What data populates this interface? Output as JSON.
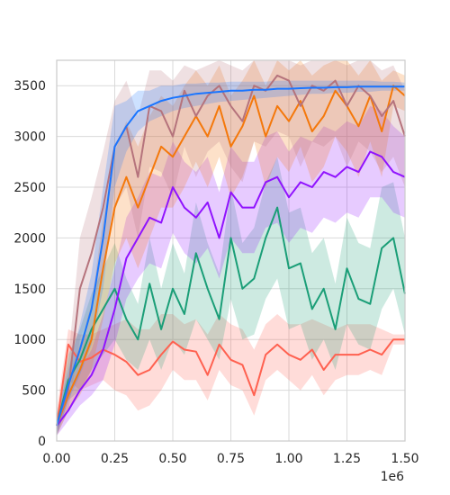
{
  "chart_data": {
    "type": "line",
    "title": "",
    "xlabel": "",
    "ylabel": "",
    "x_offset_label": "1e6",
    "xlim": [
      0,
      1500000
    ],
    "ylim": [
      0,
      3750
    ],
    "x_scale": 1000000,
    "xticks": [
      0,
      250000,
      500000,
      750000,
      1000000,
      1250000,
      1500000
    ],
    "xtick_labels": [
      "0.00",
      "0.25",
      "0.50",
      "0.75",
      "1.00",
      "1.25",
      "1.50"
    ],
    "yticks": [
      0,
      500,
      1000,
      1500,
      2000,
      2500,
      3000,
      3500
    ],
    "ytick_labels": [
      "0",
      "500",
      "1000",
      "1500",
      "2000",
      "2500",
      "3000",
      "3500"
    ],
    "grid": true,
    "legend": "none",
    "band_opacity": 0.22,
    "series": [
      {
        "color": "#ff6150",
        "x": [
          0,
          50000,
          100000,
          150000,
          200000,
          250000,
          300000,
          350000,
          400000,
          450000,
          500000,
          550000,
          600000,
          650000,
          700000,
          750000,
          800000,
          850000,
          900000,
          950000,
          1000000,
          1050000,
          1100000,
          1150000,
          1200000,
          1250000,
          1300000,
          1350000,
          1400000,
          1450000,
          1500000
        ],
        "y": [
          150,
          950,
          780,
          820,
          900,
          850,
          780,
          650,
          700,
          850,
          980,
          900,
          880,
          650,
          950,
          800,
          750,
          450,
          850,
          950,
          850,
          800,
          900,
          700,
          850,
          850,
          850,
          900,
          850,
          1000,
          1000
        ],
        "lower": [
          50,
          600,
          500,
          550,
          600,
          500,
          450,
          300,
          350,
          500,
          700,
          600,
          600,
          400,
          700,
          550,
          500,
          250,
          600,
          700,
          600,
          500,
          650,
          450,
          600,
          650,
          650,
          700,
          650,
          950,
          950
        ],
        "upper": [
          300,
          1100,
          1050,
          1050,
          1100,
          1150,
          1200,
          1100,
          1100,
          1250,
          1250,
          1150,
          1200,
          1050,
          1250,
          1150,
          1100,
          900,
          1150,
          1250,
          1150,
          1150,
          1200,
          1150,
          1100,
          1150,
          1150,
          1150,
          1100,
          1050,
          1050
        ]
      },
      {
        "color": "#1a9e77",
        "x": [
          0,
          50000,
          100000,
          150000,
          200000,
          250000,
          300000,
          350000,
          400000,
          450000,
          500000,
          550000,
          600000,
          650000,
          700000,
          750000,
          800000,
          850000,
          900000,
          950000,
          1000000,
          1050000,
          1100000,
          1150000,
          1200000,
          1250000,
          1300000,
          1350000,
          1400000,
          1450000,
          1500000
        ],
        "y": [
          150,
          600,
          800,
          1100,
          1300,
          1500,
          1200,
          1000,
          1550,
          1100,
          1500,
          1250,
          1850,
          1500,
          1200,
          2000,
          1500,
          1600,
          2000,
          2300,
          1700,
          1750,
          1300,
          1500,
          1100,
          1700,
          1400,
          1350,
          1900,
          2000,
          1450
        ],
        "lower": [
          50,
          400,
          500,
          700,
          850,
          1000,
          800,
          700,
          1000,
          700,
          1000,
          850,
          1200,
          1000,
          800,
          1400,
          1000,
          1050,
          1400,
          1600,
          1100,
          1150,
          800,
          1000,
          700,
          1150,
          950,
          900,
          1300,
          1500,
          1050
        ],
        "upper": [
          250,
          850,
          1100,
          1450,
          1700,
          1950,
          1600,
          1350,
          2000,
          1500,
          1950,
          1650,
          2350,
          1950,
          1650,
          2500,
          1950,
          2100,
          2550,
          2800,
          2250,
          2300,
          1850,
          2000,
          1550,
          2200,
          1950,
          1900,
          2500,
          2550,
          2000
        ]
      },
      {
        "color": "#9013fe",
        "x": [
          0,
          50000,
          100000,
          150000,
          200000,
          250000,
          300000,
          350000,
          400000,
          450000,
          500000,
          550000,
          600000,
          650000,
          700000,
          750000,
          800000,
          850000,
          900000,
          950000,
          1000000,
          1050000,
          1100000,
          1150000,
          1200000,
          1250000,
          1300000,
          1350000,
          1400000,
          1450000,
          1500000
        ],
        "y": [
          150,
          300,
          500,
          650,
          900,
          1300,
          1800,
          2000,
          2200,
          2150,
          2500,
          2300,
          2200,
          2350,
          2000,
          2450,
          2300,
          2300,
          2550,
          2600,
          2400,
          2550,
          2500,
          2650,
          2600,
          2700,
          2650,
          2850,
          2800,
          2650,
          2600
        ],
        "lower": [
          50,
          200,
          350,
          450,
          600,
          950,
          1400,
          1600,
          1750,
          1700,
          2050,
          1850,
          1750,
          1900,
          1600,
          2000,
          1850,
          1850,
          2100,
          2150,
          1950,
          2100,
          2050,
          2200,
          2150,
          2250,
          2200,
          2400,
          2400,
          2250,
          2200
        ],
        "upper": [
          250,
          450,
          700,
          900,
          1250,
          1700,
          2200,
          2400,
          2650,
          2600,
          2950,
          2750,
          2650,
          2800,
          2450,
          2900,
          2750,
          2750,
          3000,
          3050,
          2850,
          3000,
          2950,
          3100,
          3050,
          3150,
          3100,
          3300,
          3250,
          3100,
          3000
        ]
      },
      {
        "color": "#f4780b",
        "x": [
          0,
          50000,
          100000,
          150000,
          200000,
          250000,
          300000,
          350000,
          400000,
          450000,
          500000,
          550000,
          600000,
          650000,
          700000,
          750000,
          800000,
          850000,
          900000,
          950000,
          1000000,
          1050000,
          1100000,
          1150000,
          1200000,
          1250000,
          1300000,
          1350000,
          1400000,
          1450000,
          1500000
        ],
        "y": [
          150,
          450,
          700,
          1000,
          1700,
          2300,
          2600,
          2300,
          2600,
          2900,
          2800,
          3000,
          3200,
          3000,
          3300,
          2900,
          3100,
          3400,
          3000,
          3300,
          3150,
          3350,
          3050,
          3200,
          3450,
          3300,
          3100,
          3400,
          3050,
          3500,
          3400
        ],
        "lower": [
          50,
          300,
          450,
          700,
          1200,
          1750,
          2000,
          1700,
          2000,
          2300,
          2300,
          2500,
          2750,
          2500,
          2800,
          2400,
          2600,
          2950,
          2500,
          2800,
          2650,
          2900,
          2550,
          2700,
          3000,
          2850,
          2600,
          2950,
          2600,
          3300,
          3250
        ],
        "upper": [
          250,
          600,
          950,
          1350,
          2200,
          2850,
          3150,
          2900,
          3200,
          3400,
          3300,
          3500,
          3650,
          3500,
          3700,
          3400,
          3550,
          3750,
          3500,
          3750,
          3650,
          3750,
          3600,
          3700,
          3750,
          3750,
          3600,
          3750,
          3550,
          3650,
          3600
        ]
      },
      {
        "color": "#b5737c",
        "x": [
          0,
          50000,
          100000,
          150000,
          200000,
          250000,
          300000,
          350000,
          400000,
          450000,
          500000,
          550000,
          600000,
          650000,
          700000,
          750000,
          800000,
          850000,
          900000,
          950000,
          1000000,
          1050000,
          1100000,
          1150000,
          1200000,
          1250000,
          1300000,
          1350000,
          1400000,
          1450000,
          1500000
        ],
        "y": [
          150,
          500,
          1500,
          1850,
          2300,
          2900,
          3100,
          2600,
          3300,
          3250,
          3000,
          3450,
          3200,
          3400,
          3500,
          3300,
          3150,
          3500,
          3450,
          3600,
          3550,
          3300,
          3500,
          3450,
          3550,
          3300,
          3500,
          3400,
          3200,
          3350,
          3000
        ],
        "lower": [
          50,
          300,
          1000,
          1300,
          1700,
          2300,
          2500,
          2000,
          2700,
          2650,
          2400,
          2900,
          2600,
          2850,
          2950,
          2700,
          2550,
          2950,
          2900,
          3050,
          3000,
          2700,
          2950,
          2900,
          3000,
          2700,
          2950,
          2850,
          2650,
          2800,
          2500
        ],
        "upper": [
          250,
          800,
          2000,
          2400,
          2850,
          3350,
          3550,
          3200,
          3650,
          3650,
          3550,
          3700,
          3650,
          3700,
          3750,
          3700,
          3650,
          3750,
          3750,
          3750,
          3750,
          3700,
          3750,
          3750,
          3750,
          3700,
          3750,
          3750,
          3650,
          3700,
          3450
        ]
      },
      {
        "color": "#1a75ff",
        "x": [
          0,
          50000,
          100000,
          150000,
          200000,
          250000,
          300000,
          350000,
          400000,
          450000,
          500000,
          550000,
          600000,
          650000,
          700000,
          750000,
          800000,
          850000,
          900000,
          950000,
          1000000,
          1050000,
          1100000,
          1150000,
          1200000,
          1250000,
          1300000,
          1350000,
          1400000,
          1450000,
          1500000
        ],
        "y": [
          150,
          550,
          900,
          1300,
          2000,
          2900,
          3100,
          3250,
          3300,
          3350,
          3380,
          3400,
          3420,
          3430,
          3440,
          3450,
          3450,
          3460,
          3460,
          3470,
          3470,
          3475,
          3480,
          3480,
          3485,
          3485,
          3490,
          3490,
          3490,
          3490,
          3490
        ],
        "lower": [
          50,
          400,
          650,
          950,
          1500,
          2500,
          2850,
          3050,
          3150,
          3200,
          3250,
          3280,
          3300,
          3320,
          3340,
          3350,
          3360,
          3370,
          3380,
          3390,
          3400,
          3410,
          3420,
          3420,
          3430,
          3430,
          3440,
          3440,
          3450,
          3450,
          3450
        ],
        "upper": [
          250,
          700,
          1150,
          1650,
          2500,
          3300,
          3350,
          3450,
          3450,
          3500,
          3500,
          3520,
          3520,
          3530,
          3530,
          3540,
          3540,
          3540,
          3540,
          3550,
          3550,
          3550,
          3550,
          3550,
          3550,
          3550,
          3550,
          3550,
          3540,
          3540,
          3530
        ]
      }
    ]
  }
}
